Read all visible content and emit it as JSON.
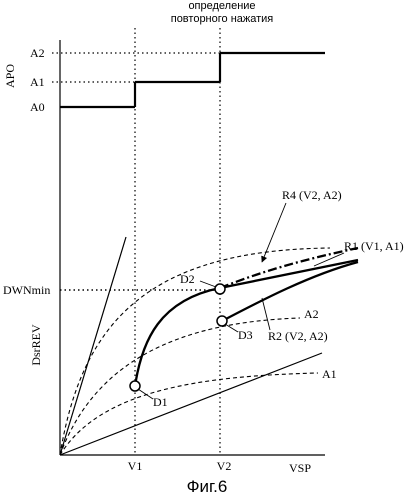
{
  "header": {
    "line1": "определение",
    "line2": "повторного нажатия"
  },
  "apo_axis": {
    "label": "APO",
    "levels": [
      "A2",
      "A1",
      "A0"
    ]
  },
  "lower_axis": {
    "ylabel": "DsrREV",
    "ytick": "DWNmin",
    "xlabel": "VSP",
    "xticks": [
      "V1",
      "V2"
    ]
  },
  "curves": {
    "r4": "R4 (V2, A2)",
    "r1": "R1 (V1, A1)",
    "r2": "R2 (V2, A2)",
    "a2": "A2",
    "a1": "A1"
  },
  "points": {
    "d1": "D1",
    "d2": "D2",
    "d3": "D3"
  },
  "caption": "Фиг.6"
}
